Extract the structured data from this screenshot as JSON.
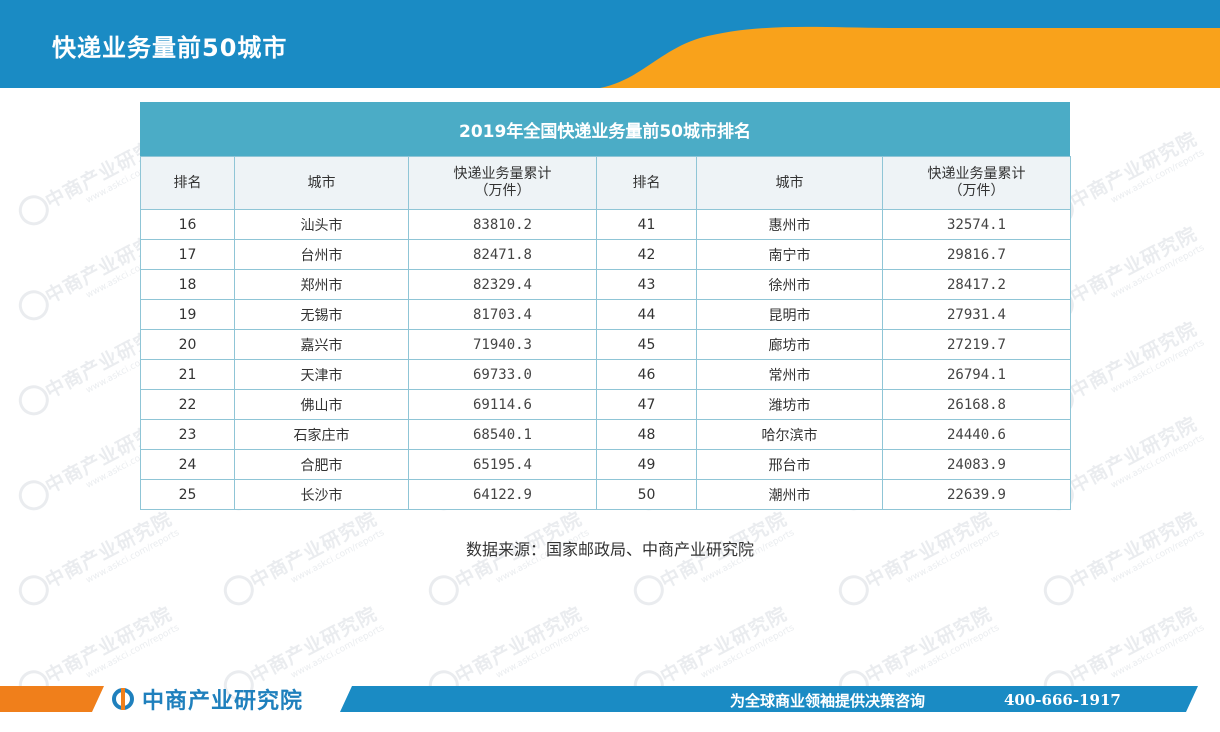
{
  "header": {
    "title": "快递业务量前50城市",
    "colors": {
      "blue": "#1a8bc4",
      "orange": "#f9a21b"
    }
  },
  "watermark": {
    "text": "中商产业研究院",
    "subtext": "www.askci.com/reports"
  },
  "table": {
    "title": "2019年全国快递业务量前50城市排名",
    "headers": [
      {
        "rank": "排名",
        "city": "城市",
        "volume": "快递业务量累计",
        "unit": "（万件）"
      },
      {
        "rank": "排名",
        "city": "城市",
        "volume": "快递业务量累计",
        "unit": "（万件）"
      }
    ],
    "rows": [
      [
        "16",
        "汕头市",
        "83810.2",
        "41",
        "惠州市",
        "32574.1"
      ],
      [
        "17",
        "台州市",
        "82471.8",
        "42",
        "南宁市",
        "29816.7"
      ],
      [
        "18",
        "郑州市",
        "82329.4",
        "43",
        "徐州市",
        "28417.2"
      ],
      [
        "19",
        "无锡市",
        "81703.4",
        "44",
        "昆明市",
        "27931.4"
      ],
      [
        "20",
        "嘉兴市",
        "71940.3",
        "45",
        "廊坊市",
        "27219.7"
      ],
      [
        "21",
        "天津市",
        "69733.0",
        "46",
        "常州市",
        "26794.1"
      ],
      [
        "22",
        "佛山市",
        "69114.6",
        "47",
        "潍坊市",
        "26168.8"
      ],
      [
        "23",
        "石家庄市",
        "68540.1",
        "48",
        "哈尔滨市",
        "24440.6"
      ],
      [
        "24",
        "合肥市",
        "65195.4",
        "49",
        "邢台市",
        "24083.9"
      ],
      [
        "25",
        "长沙市",
        "64122.9",
        "50",
        "潮州市",
        "22639.9"
      ]
    ]
  },
  "source": "数据来源：国家邮政局、中商产业研究院",
  "footer": {
    "logo_text": "中商产业研究院",
    "slogan": "为全球商业领袖提供决策咨询",
    "phone": "400-666-1917"
  }
}
